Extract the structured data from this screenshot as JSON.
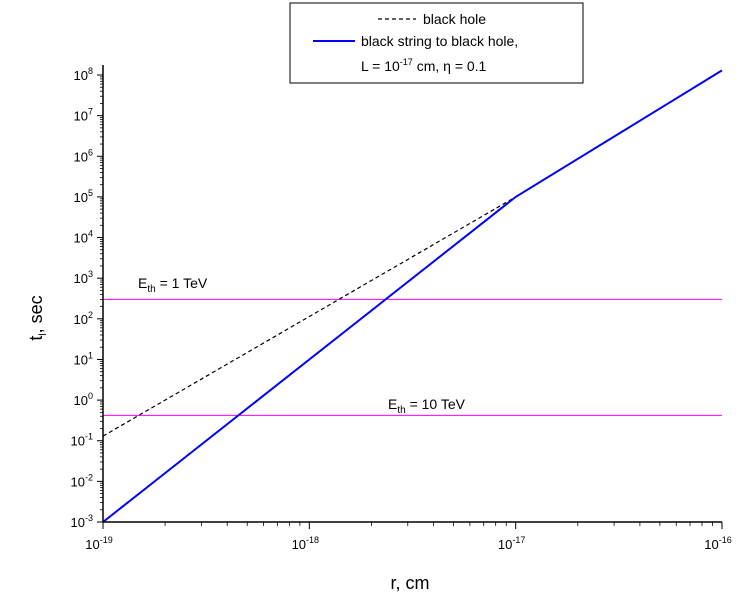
{
  "chart_data": {
    "type": "line",
    "xlabel": {
      "main": "r, cm"
    },
    "ylabel": {
      "main": "t",
      "sub": "l",
      "suffix": ", sec"
    },
    "x_scale": "log",
    "y_scale": "log",
    "xlim": [
      1e-19,
      1e-16
    ],
    "ylim": [
      0.001,
      100000000.0
    ],
    "x_ticks": [
      {
        "base": "10",
        "exp": "-19"
      },
      {
        "base": "10",
        "exp": "-18"
      },
      {
        "base": "10",
        "exp": "-17"
      },
      {
        "base": "10",
        "exp": "-16"
      }
    ],
    "y_ticks": [
      {
        "base": "10",
        "exp": "-3"
      },
      {
        "base": "10",
        "exp": "-2"
      },
      {
        "base": "10",
        "exp": "-1"
      },
      {
        "base": "10",
        "exp": "0"
      },
      {
        "base": "10",
        "exp": "1"
      },
      {
        "base": "10",
        "exp": "2"
      },
      {
        "base": "10",
        "exp": "3"
      },
      {
        "base": "10",
        "exp": "4"
      },
      {
        "base": "10",
        "exp": "5"
      },
      {
        "base": "10",
        "exp": "6"
      },
      {
        "base": "10",
        "exp": "7"
      },
      {
        "base": "10",
        "exp": "8"
      }
    ],
    "grid": false,
    "legend": {
      "placement": "top-center",
      "entries": [
        {
          "series": "black_hole",
          "label": "black hole"
        },
        {
          "series": "black_string",
          "label": "black string to black hole,",
          "line2": {
            "a": "L = 10",
            "exp": "-17",
            "b": " cm, η = 0.1"
          }
        }
      ]
    },
    "series": [
      {
        "id": "black_hole",
        "name": "black hole",
        "color": "#000000",
        "style": "dashed",
        "x": [
          1e-19,
          1e-17
        ],
        "y": [
          0.13,
          100000
        ]
      },
      {
        "id": "black_string",
        "name": "black string to black hole, L = 10^-17 cm, η = 0.1",
        "color": "#0000ff",
        "style": "solid",
        "x": [
          1e-19,
          1e-17,
          1e-16
        ],
        "y": [
          0.001,
          100000,
          130000000
        ]
      }
    ],
    "hlines": [
      {
        "y": 300,
        "color": "#ff00ff",
        "label": {
          "pre": "E",
          "sub": "th",
          "post": " = 1 TeV"
        }
      },
      {
        "y": 0.42,
        "color": "#ff00ff",
        "label": {
          "pre": "E",
          "sub": "th",
          "post": " = 10 TeV"
        }
      }
    ]
  }
}
